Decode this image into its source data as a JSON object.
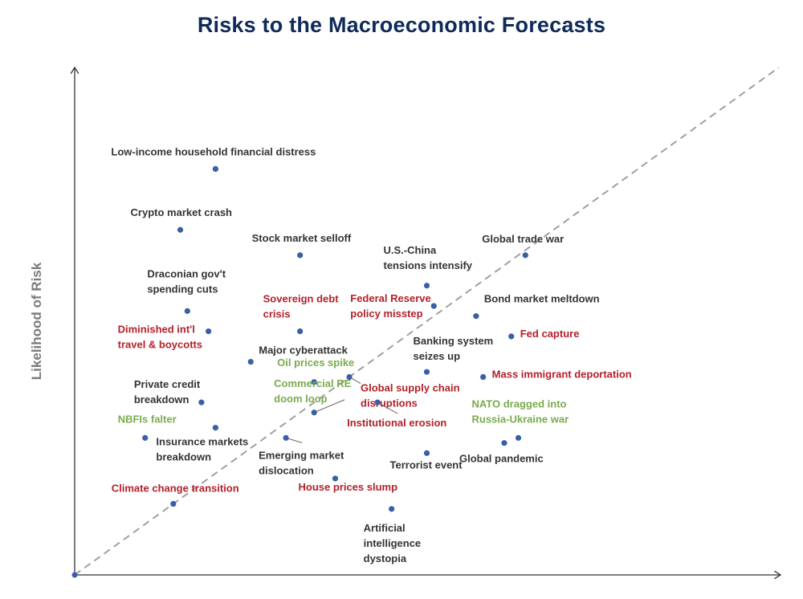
{
  "chart_data": {
    "type": "scatter",
    "title": "Risks to the Macroeconomic Forecasts",
    "xlabel": "",
    "ylabel": "Likelihood of Risk",
    "reference_line": "diagonal-dashed",
    "categories_colors": {
      "black": "#333333",
      "red": "#b3202a",
      "green": "#7aab4e",
      "marker": "#3a5ea8",
      "title": "#0f2a5a"
    },
    "points": [
      {
        "label": [
          "Low-income household financial distress"
        ],
        "x": 0.2,
        "y": 0.8,
        "color": "black"
      },
      {
        "label": [
          "Crypto market crash"
        ],
        "x": 0.15,
        "y": 0.68,
        "color": "black"
      },
      {
        "label": [
          "Stock market selloff"
        ],
        "x": 0.32,
        "y": 0.63,
        "color": "black"
      },
      {
        "label": [
          "Global trade war"
        ],
        "x": 0.64,
        "y": 0.63,
        "color": "black"
      },
      {
        "label": [
          "U.S.-China",
          "tensions intensify"
        ],
        "x": 0.5,
        "y": 0.57,
        "color": "black"
      },
      {
        "label": [
          "Draconian gov't",
          "spending cuts"
        ],
        "x": 0.16,
        "y": 0.52,
        "color": "black"
      },
      {
        "label": [
          "Sovereign debt",
          "crisis"
        ],
        "x": 0.32,
        "y": 0.48,
        "color": "red"
      },
      {
        "label": [
          "Federal Reserve",
          "policy misstep"
        ],
        "x": 0.51,
        "y": 0.53,
        "color": "red"
      },
      {
        "label": [
          "Bond market meltdown"
        ],
        "x": 0.57,
        "y": 0.51,
        "color": "black"
      },
      {
        "label": [
          "Diminished int'l",
          "travel & boycotts"
        ],
        "x": 0.19,
        "y": 0.48,
        "color": "red"
      },
      {
        "label": [
          "Fed capture"
        ],
        "x": 0.62,
        "y": 0.47,
        "color": "red"
      },
      {
        "label": [
          "Major cyberattack"
        ],
        "x": 0.25,
        "y": 0.42,
        "color": "black"
      },
      {
        "label": [
          "Banking system",
          "seizes up"
        ],
        "x": 0.5,
        "y": 0.4,
        "color": "black"
      },
      {
        "label": [
          "Oil prices spike"
        ],
        "x": 0.34,
        "y": 0.38,
        "color": "green"
      },
      {
        "label": [
          "Global supply chain",
          "disruptions"
        ],
        "x": 0.39,
        "y": 0.39,
        "color": "red"
      },
      {
        "label": [
          "Mass immigrant deportation"
        ],
        "x": 0.58,
        "y": 0.39,
        "color": "red"
      },
      {
        "label": [
          "Private credit",
          "breakdown"
        ],
        "x": 0.18,
        "y": 0.34,
        "color": "black"
      },
      {
        "label": [
          "Commercial RE",
          "doom loop"
        ],
        "x": 0.34,
        "y": 0.32,
        "color": "green"
      },
      {
        "label": [
          "Institutional erosion"
        ],
        "x": 0.43,
        "y": 0.34,
        "color": "red"
      },
      {
        "label": [
          "NBFIs falter"
        ],
        "x": 0.1,
        "y": 0.27,
        "color": "green"
      },
      {
        "label": [
          "Insurance markets",
          "breakdown"
        ],
        "x": 0.2,
        "y": 0.29,
        "color": "black"
      },
      {
        "label": [
          "NATO dragged into",
          "Russia-Ukraine war"
        ],
        "x": 0.63,
        "y": 0.27,
        "color": "green"
      },
      {
        "label": [
          "Global pandemic"
        ],
        "x": 0.61,
        "y": 0.26,
        "color": "black"
      },
      {
        "label": [
          "Emerging market",
          "dislocation"
        ],
        "x": 0.3,
        "y": 0.27,
        "color": "black"
      },
      {
        "label": [
          "Terrorist event"
        ],
        "x": 0.5,
        "y": 0.24,
        "color": "black"
      },
      {
        "label": [
          "House prices slump"
        ],
        "x": 0.37,
        "y": 0.19,
        "color": "red"
      },
      {
        "label": [
          "Climate change transition"
        ],
        "x": 0.14,
        "y": 0.14,
        "color": "red"
      },
      {
        "label": [
          "Artificial",
          "intelligence",
          "dystopia"
        ],
        "x": 0.45,
        "y": 0.13,
        "color": "black"
      }
    ]
  }
}
